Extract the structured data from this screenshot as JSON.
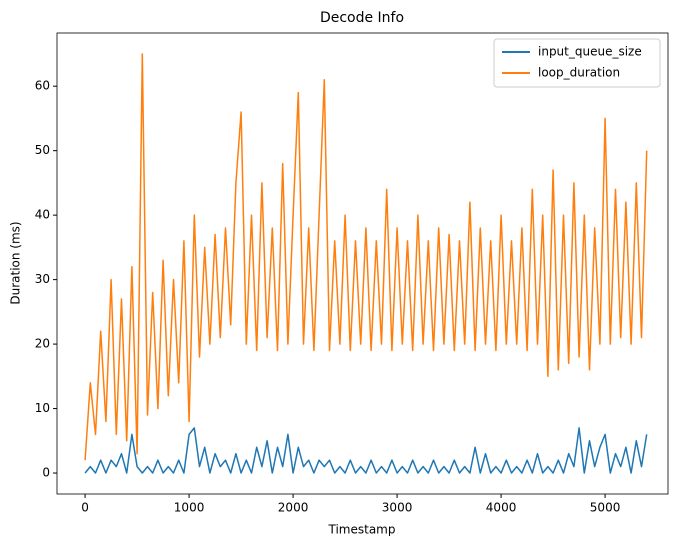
{
  "chart_data": {
    "type": "line",
    "title": "Decode Info",
    "x_label": "Timestamp",
    "y_label": "Duration (ms)",
    "x": [
      0,
      50,
      100,
      150,
      200,
      250,
      300,
      350,
      400,
      450,
      500,
      550,
      600,
      650,
      700,
      750,
      800,
      850,
      900,
      950,
      1000,
      1050,
      1100,
      1150,
      1200,
      1250,
      1300,
      1350,
      1400,
      1450,
      1500,
      1550,
      1600,
      1650,
      1700,
      1750,
      1800,
      1850,
      1900,
      1950,
      2000,
      2050,
      2100,
      2150,
      2200,
      2250,
      2300,
      2350,
      2400,
      2450,
      2500,
      2550,
      2600,
      2650,
      2700,
      2750,
      2800,
      2850,
      2900,
      2950,
      3000,
      3050,
      3100,
      3150,
      3200,
      3250,
      3300,
      3350,
      3400,
      3450,
      3500,
      3550,
      3600,
      3650,
      3700,
      3750,
      3800,
      3850,
      3900,
      3950,
      4000,
      4050,
      4100,
      4150,
      4200,
      4250,
      4300,
      4350,
      4400,
      4450,
      4500,
      4550,
      4600,
      4650,
      4700,
      4750,
      4800,
      4850,
      4900,
      4950,
      5000,
      5050,
      5100,
      5150,
      5200,
      5250,
      5300,
      5350,
      5400
    ],
    "series": [
      {
        "name": "input_queue_size",
        "color": "#1f77b4",
        "values": [
          0,
          1,
          0,
          2,
          0,
          2,
          1,
          3,
          0,
          6,
          1,
          0,
          1,
          0,
          2,
          0,
          1,
          0,
          2,
          0,
          6,
          7,
          1,
          4,
          0,
          3,
          1,
          2,
          0,
          3,
          0,
          2,
          0,
          4,
          1,
          5,
          0,
          4,
          1,
          6,
          0,
          4,
          1,
          2,
          0,
          2,
          1,
          2,
          0,
          1,
          0,
          2,
          0,
          1,
          0,
          2,
          0,
          1,
          0,
          2,
          0,
          1,
          0,
          2,
          0,
          1,
          0,
          2,
          0,
          1,
          0,
          2,
          0,
          1,
          0,
          4,
          0,
          3,
          0,
          1,
          0,
          2,
          0,
          1,
          0,
          2,
          0,
          3,
          0,
          1,
          0,
          2,
          0,
          3,
          1,
          7,
          0,
          5,
          1,
          4,
          6,
          0,
          3,
          1,
          4,
          0,
          5,
          1,
          6
        ]
      },
      {
        "name": "loop_duration",
        "color": "#ff7f0e",
        "values": [
          2,
          14,
          6,
          22,
          8,
          30,
          6,
          27,
          5,
          32,
          3,
          65,
          9,
          28,
          10,
          33,
          12,
          30,
          14,
          36,
          8,
          40,
          18,
          35,
          20,
          37,
          21,
          38,
          23,
          45,
          56,
          20,
          40,
          19,
          45,
          21,
          38,
          19,
          48,
          20,
          40,
          59,
          20,
          38,
          19,
          40,
          61,
          19,
          36,
          20,
          40,
          19,
          36,
          20,
          38,
          19,
          36,
          20,
          44,
          19,
          38,
          20,
          36,
          19,
          40,
          20,
          36,
          19,
          38,
          20,
          37,
          19,
          36,
          20,
          42,
          19,
          38,
          20,
          36,
          19,
          40,
          20,
          36,
          20,
          38,
          19,
          44,
          20,
          40,
          15,
          47,
          16,
          40,
          17,
          45,
          18,
          40,
          16,
          38,
          20,
          55,
          20,
          44,
          21,
          42,
          20,
          45,
          21,
          50
        ]
      }
    ],
    "xlim": [
      -270,
      5605
    ],
    "ylim": [
      -3.25,
      68.25
    ],
    "xticks": [
      0,
      1000,
      2000,
      3000,
      4000,
      5000
    ],
    "yticks": [
      0,
      10,
      20,
      30,
      40,
      50,
      60
    ],
    "legend": "upper right"
  }
}
